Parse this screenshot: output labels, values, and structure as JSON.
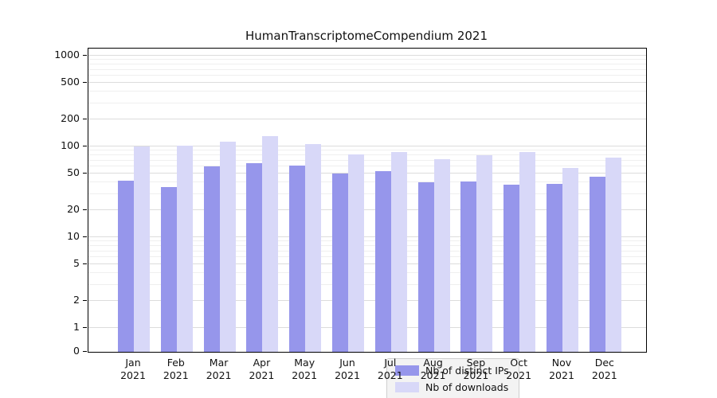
{
  "title": "HumanTranscriptomeCompendium 2021",
  "chart_data": {
    "type": "bar",
    "title": "HumanTranscriptomeCompendium 2021",
    "categories": [
      "Jan 2021",
      "Feb 2021",
      "Mar 2021",
      "Apr 2021",
      "May 2021",
      "Jun 2021",
      "Jul 2021",
      "Aug 2021",
      "Sep 2021",
      "Oct 2021",
      "Nov 2021",
      "Dec 2021"
    ],
    "series": [
      {
        "name": "Nb of distinct IPs",
        "color": "#9696eb",
        "values": [
          42,
          36,
          60,
          66,
          62,
          50,
          53,
          40,
          41,
          38,
          39,
          46
        ]
      },
      {
        "name": "Nb of downloads",
        "color": "#d8d8f8",
        "values": [
          100,
          102,
          112,
          130,
          107,
          82,
          87,
          72,
          80,
          87,
          58,
          76
        ]
      }
    ],
    "xlabel": "",
    "ylabel": "",
    "yscale": "symlog",
    "ylim": [
      0,
      1000
    ],
    "y_ticks": [
      0,
      1,
      2,
      5,
      10,
      20,
      50,
      100,
      200,
      500,
      1000
    ],
    "grid": true,
    "legend_position": "lower center"
  }
}
